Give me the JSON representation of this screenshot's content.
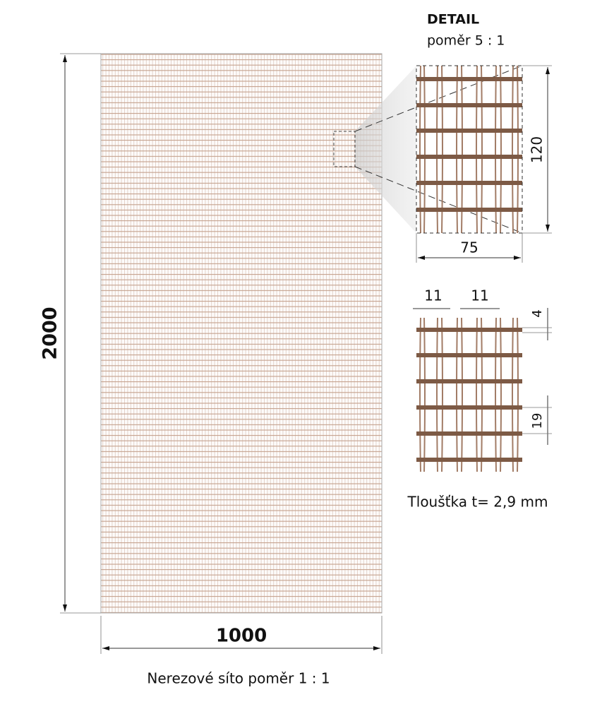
{
  "main": {
    "height_label": 2000,
    "width_label": 1000,
    "caption": "Nerezové síto poměr 1 : 1"
  },
  "detail": {
    "title": "DETAIL",
    "scale": "poměr 5 : 1",
    "height_label": 120,
    "width_label": 75
  },
  "section": {
    "pitch_label_1": 11,
    "pitch_label_2": 11,
    "wire_label": 4,
    "spacing_label": 19,
    "thickness": "Tloušťka t= 2,9 mm"
  }
}
